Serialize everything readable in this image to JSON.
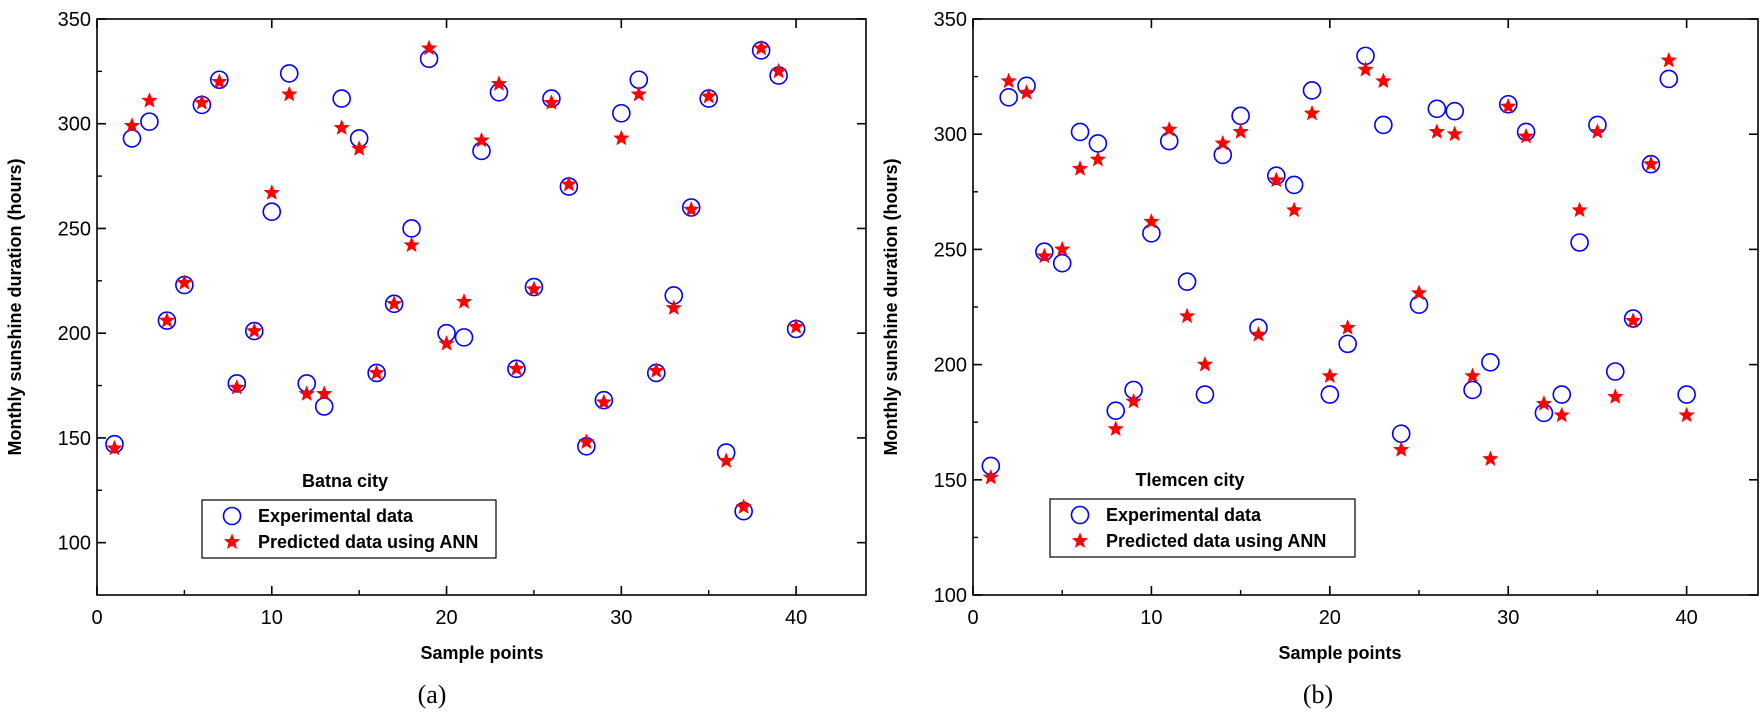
{
  "chart_data": [
    {
      "type": "scatter",
      "panel_label": "(a)",
      "annotation": "Batna city",
      "xlabel": "Sample points",
      "ylabel": "Monthly sunshine duration (hours)",
      "xlim": [
        0,
        44
      ],
      "ylim": [
        75,
        350
      ],
      "xticks": [
        0,
        10,
        20,
        30,
        40
      ],
      "yticks": [
        100,
        150,
        200,
        250,
        300,
        350
      ],
      "grid": false,
      "legend_position": "bottom-center",
      "series": [
        {
          "name": "Experimental data",
          "marker": "open-circle",
          "color": "#0000ff",
          "x": [
            1,
            2,
            3,
            4,
            5,
            6,
            7,
            8,
            9,
            10,
            11,
            12,
            13,
            14,
            15,
            16,
            17,
            18,
            19,
            20,
            21,
            22,
            23,
            24,
            25,
            26,
            27,
            28,
            29,
            30,
            31,
            32,
            33,
            34,
            35,
            36,
            37,
            38,
            39,
            40
          ],
          "y": [
            147,
            293,
            301,
            206,
            223,
            309,
            321,
            176,
            201,
            258,
            324,
            176,
            165,
            312,
            293,
            181,
            214,
            250,
            331,
            200,
            198,
            287,
            315,
            183,
            222,
            312,
            270,
            146,
            168,
            305,
            321,
            181,
            218,
            260,
            312,
            143,
            115,
            335,
            323,
            202
          ]
        },
        {
          "name": "Predicted data using ANN",
          "marker": "filled-star",
          "color": "#ff0000",
          "x": [
            1,
            2,
            3,
            4,
            5,
            6,
            7,
            8,
            9,
            10,
            11,
            12,
            13,
            14,
            15,
            16,
            17,
            18,
            19,
            20,
            21,
            22,
            23,
            24,
            25,
            26,
            27,
            28,
            29,
            30,
            31,
            32,
            33,
            34,
            35,
            36,
            37,
            38,
            39,
            40
          ],
          "y": [
            145,
            299,
            311,
            206,
            224,
            310,
            320,
            174,
            201,
            267,
            314,
            171,
            171,
            298,
            288,
            181,
            214,
            242,
            336,
            195,
            215,
            292,
            319,
            183,
            221,
            310,
            271,
            148,
            167,
            293,
            314,
            182,
            212,
            259,
            313,
            139,
            117,
            336,
            325,
            203
          ]
        }
      ]
    },
    {
      "type": "scatter",
      "panel_label": "(b)",
      "annotation": "Tlemcen city",
      "xlabel": "Sample points",
      "ylabel": "Monthly sunshine duration (hours)",
      "xlim": [
        0,
        44
      ],
      "ylim": [
        100,
        350
      ],
      "xticks": [
        0,
        10,
        20,
        30,
        40
      ],
      "yticks": [
        100,
        150,
        200,
        250,
        300,
        350
      ],
      "grid": false,
      "legend_position": "bottom-center",
      "series": [
        {
          "name": "Experimental data",
          "marker": "open-circle",
          "color": "#0000ff",
          "x": [
            1,
            2,
            3,
            4,
            5,
            6,
            7,
            8,
            9,
            10,
            11,
            12,
            13,
            14,
            15,
            16,
            17,
            18,
            19,
            20,
            21,
            22,
            23,
            24,
            25,
            26,
            27,
            28,
            29,
            30,
            31,
            32,
            33,
            34,
            35,
            36,
            37,
            38,
            39,
            40
          ],
          "y": [
            156,
            316,
            321,
            249,
            244,
            301,
            296,
            180,
            189,
            257,
            297,
            236,
            187,
            291,
            308,
            216,
            282,
            278,
            319,
            187,
            209,
            334,
            304,
            170,
            226,
            311,
            310,
            189,
            201,
            313,
            301,
            179,
            187,
            253,
            304,
            197,
            220,
            287,
            324,
            187
          ]
        },
        {
          "name": "Predicted data using ANN",
          "marker": "filled-star",
          "color": "#ff0000",
          "x": [
            1,
            2,
            3,
            4,
            5,
            6,
            7,
            8,
            9,
            10,
            11,
            12,
            13,
            14,
            15,
            16,
            17,
            18,
            19,
            20,
            21,
            22,
            23,
            24,
            25,
            26,
            27,
            28,
            29,
            30,
            31,
            32,
            33,
            34,
            35,
            36,
            37,
            38,
            39,
            40
          ],
          "y": [
            151,
            323,
            318,
            247,
            250,
            285,
            289,
            172,
            184,
            262,
            302,
            221,
            200,
            296,
            301,
            213,
            280,
            267,
            309,
            195,
            216,
            328,
            323,
            163,
            231,
            301,
            300,
            195,
            159,
            312,
            299,
            183,
            178,
            267,
            301,
            186,
            219,
            287,
            332,
            178
          ]
        }
      ]
    }
  ]
}
